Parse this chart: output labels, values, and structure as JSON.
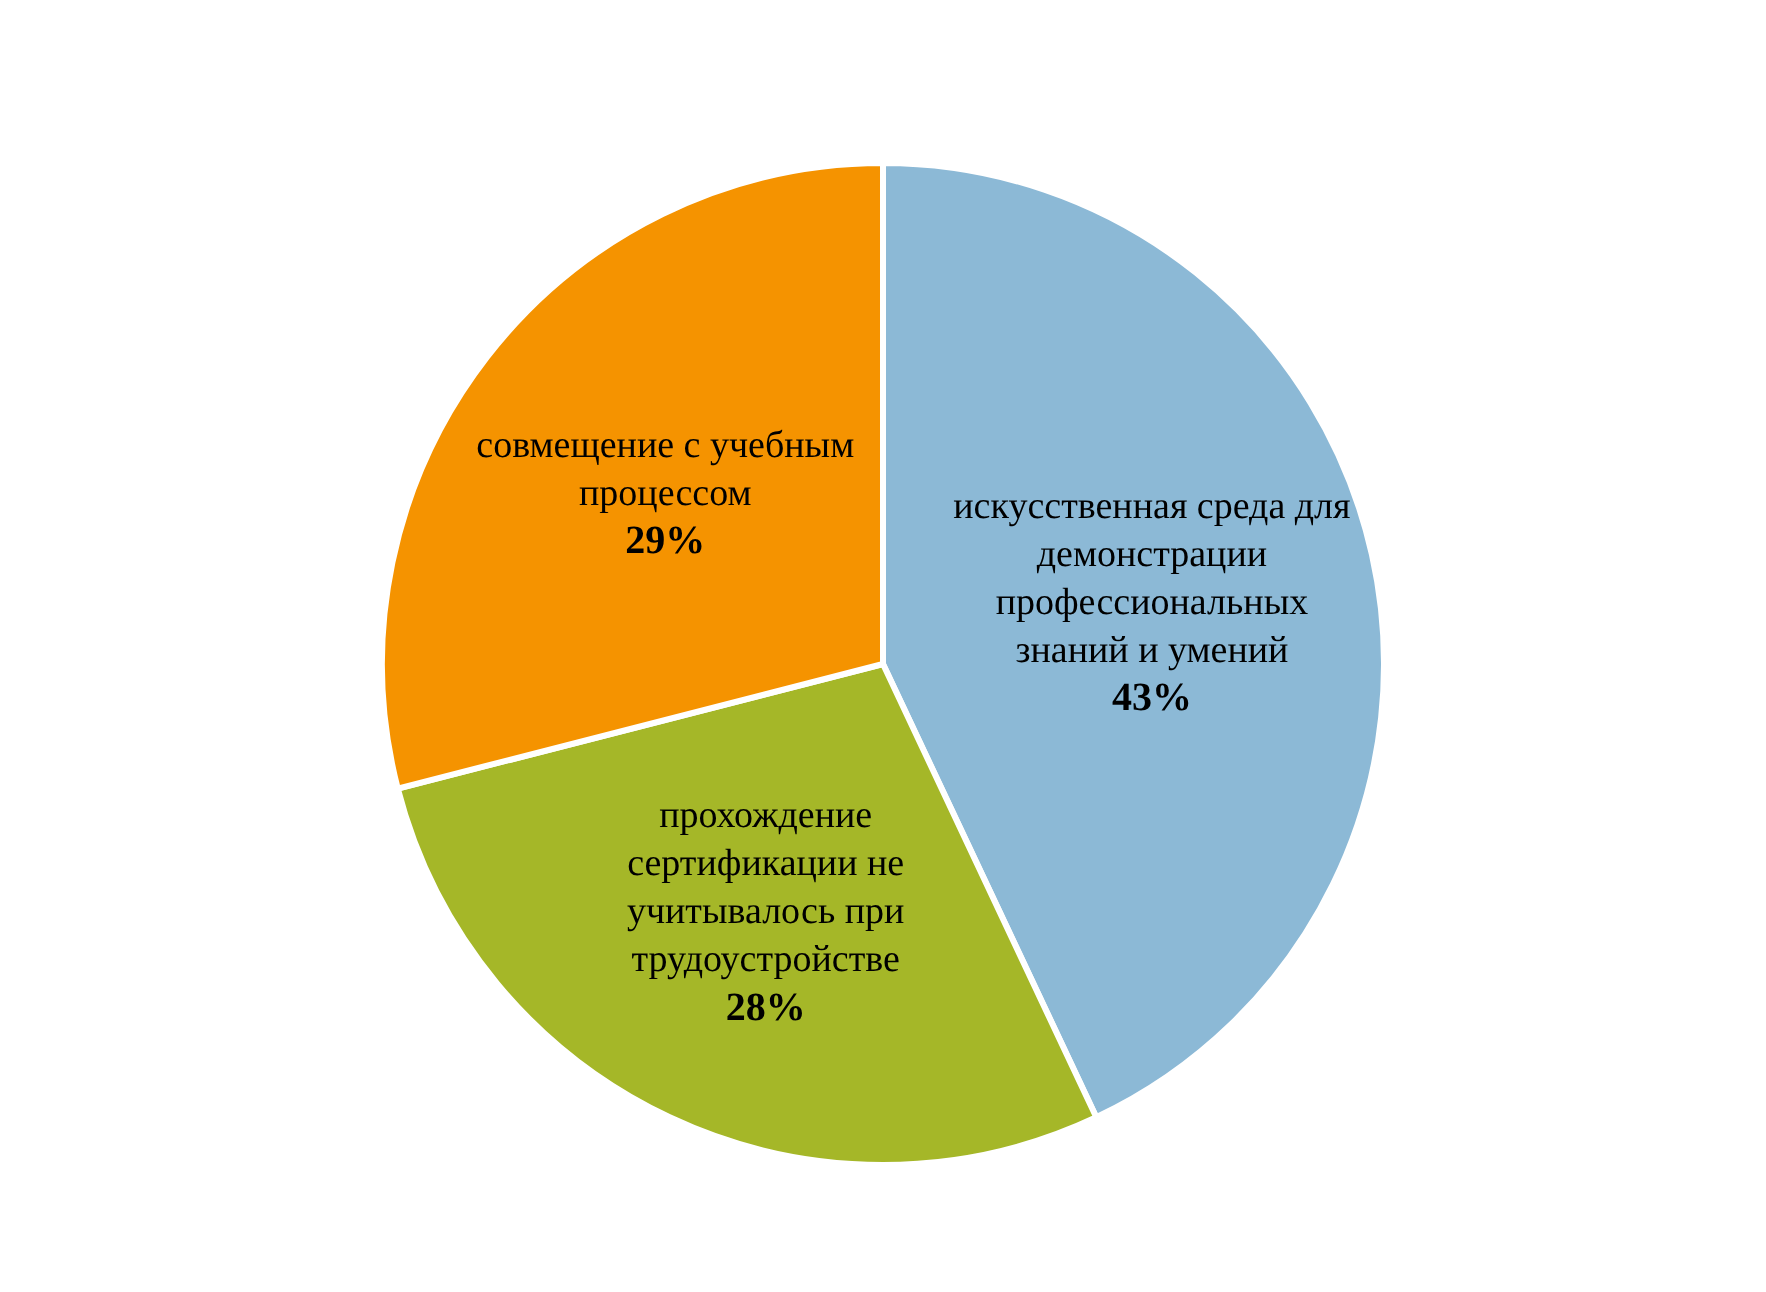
{
  "chart_data": {
    "type": "pie",
    "categories": [
      "искусственная среда для демонстрации профессиональных знаний и умений",
      "прохождение сертификации не учитывалось при трудоустройстве",
      "совмещение с учебным процессом"
    ],
    "values": [
      43,
      28,
      29
    ],
    "colors": [
      "#8cb9d6",
      "#a5b728",
      "#f59300"
    ],
    "value_labels": [
      "43%",
      "28%",
      "29%"
    ],
    "legend": false
  }
}
